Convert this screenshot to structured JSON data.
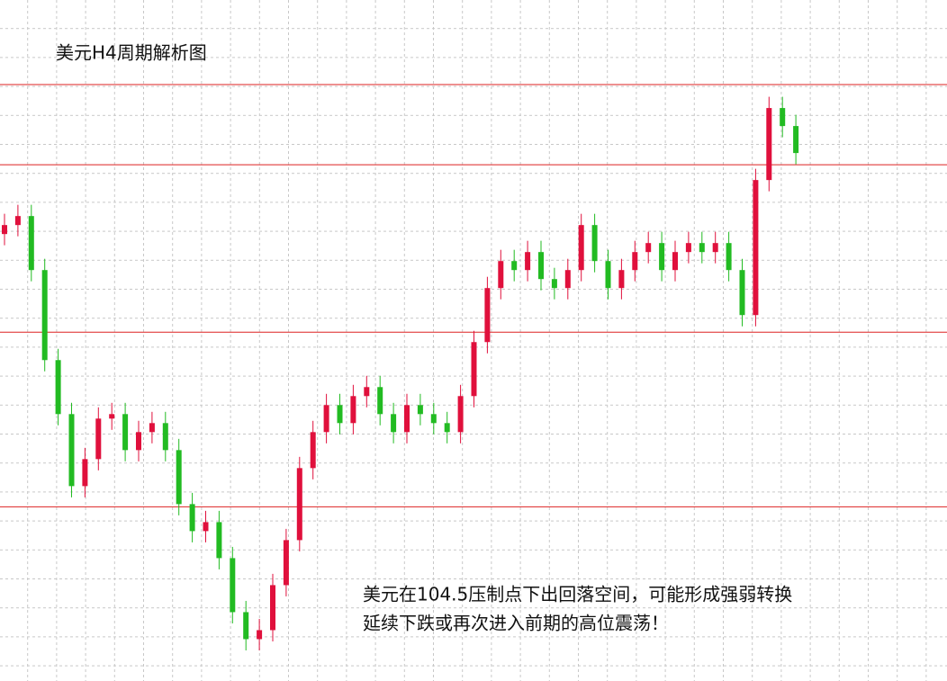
{
  "chart_data": {
    "type": "candlestick",
    "title": "美元H4周期解析图",
    "annotations": [
      "美元在104.5压制点下出回落空间，可能形成强弱转换",
      "延续下跌或再次进入前期的高位震荡！"
    ],
    "ylim": [
      101.85,
      104.876
    ],
    "grid": true,
    "up_color": "#e0103c",
    "down_color": "#22bb22",
    "level_color": "#dd2222",
    "levels": [
      104.5,
      104.144,
      103.4,
      102.624
    ],
    "open": [
      103.836,
      103.876,
      103.916,
      103.676,
      103.276,
      103.036,
      102.716,
      102.836,
      103.016,
      103.036,
      102.876,
      102.956,
      102.996,
      102.876,
      102.636,
      102.516,
      102.556,
      102.396,
      102.156,
      102.036,
      102.076,
      102.276,
      102.476,
      102.796,
      102.956,
      103.076,
      102.996,
      103.116,
      103.156,
      103.036,
      102.956,
      103.076,
      103.036,
      102.996,
      102.956,
      103.116,
      103.356,
      103.596,
      103.716,
      103.676,
      103.756,
      103.636,
      103.596,
      103.676,
      103.876,
      103.716,
      103.596,
      103.676,
      103.756,
      103.796,
      103.676,
      103.756,
      103.796,
      103.756,
      103.796,
      103.676,
      103.476,
      104.076,
      104.396,
      104.316
    ],
    "close": [
      103.876,
      103.916,
      103.676,
      103.276,
      103.036,
      102.716,
      102.836,
      103.016,
      103.036,
      102.876,
      102.956,
      102.996,
      102.876,
      102.636,
      102.516,
      102.556,
      102.396,
      102.156,
      102.036,
      102.076,
      102.276,
      102.476,
      102.796,
      102.956,
      103.076,
      102.996,
      103.116,
      103.156,
      103.036,
      102.956,
      103.076,
      103.036,
      102.996,
      102.956,
      103.116,
      103.356,
      103.596,
      103.716,
      103.676,
      103.756,
      103.636,
      103.596,
      103.676,
      103.876,
      103.716,
      103.596,
      103.676,
      103.756,
      103.796,
      103.676,
      103.756,
      103.796,
      103.756,
      103.796,
      103.676,
      103.476,
      104.076,
      104.396,
      104.316,
      104.196
    ],
    "high": [
      103.926,
      103.966,
      103.966,
      103.726,
      103.326,
      103.086,
      102.886,
      103.066,
      103.086,
      103.086,
      103.006,
      103.046,
      103.046,
      102.926,
      102.686,
      102.606,
      102.606,
      102.446,
      102.206,
      102.126,
      102.326,
      102.526,
      102.846,
      103.006,
      103.126,
      103.126,
      103.166,
      103.206,
      103.206,
      103.086,
      103.126,
      103.126,
      103.086,
      103.046,
      103.166,
      103.406,
      103.646,
      103.766,
      103.766,
      103.806,
      103.806,
      103.686,
      103.726,
      103.926,
      103.926,
      103.766,
      103.726,
      103.806,
      103.846,
      103.846,
      103.806,
      103.846,
      103.846,
      103.846,
      103.846,
      103.726,
      104.126,
      104.446,
      104.446,
      104.366
    ],
    "low": [
      103.786,
      103.826,
      103.626,
      103.226,
      102.986,
      102.666,
      102.666,
      102.786,
      102.966,
      102.826,
      102.826,
      102.906,
      102.826,
      102.586,
      102.466,
      102.466,
      102.346,
      102.106,
      101.986,
      101.986,
      102.026,
      102.226,
      102.426,
      102.746,
      102.906,
      102.946,
      102.946,
      103.066,
      102.986,
      102.906,
      102.906,
      102.986,
      102.946,
      102.906,
      102.906,
      103.066,
      103.306,
      103.546,
      103.626,
      103.626,
      103.586,
      103.546,
      103.546,
      103.626,
      103.666,
      103.546,
      103.546,
      103.626,
      103.706,
      103.626,
      103.626,
      103.706,
      103.706,
      103.706,
      103.626,
      103.426,
      103.426,
      104.026,
      104.266,
      104.146
    ]
  }
}
